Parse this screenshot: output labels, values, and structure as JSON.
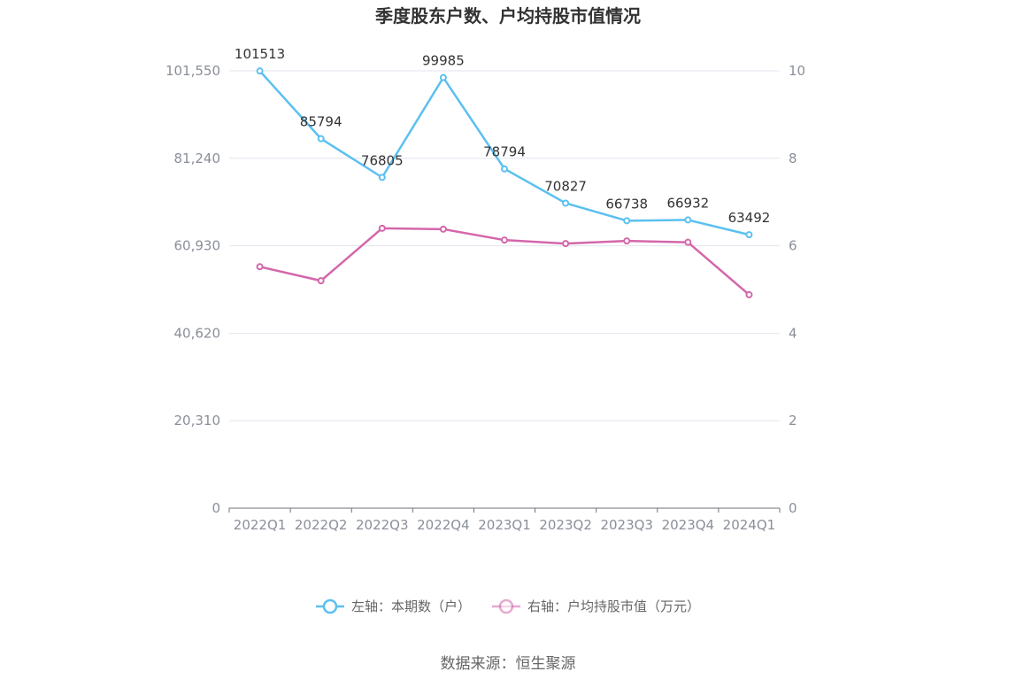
{
  "chart_data": {
    "type": "line",
    "title": "季度股东户数、户均持股市值情况",
    "categories": [
      "2022Q1",
      "2022Q2",
      "2022Q3",
      "2022Q4",
      "2023Q1",
      "2023Q2",
      "2023Q3",
      "2023Q4",
      "2024Q1"
    ],
    "left_axis": {
      "ylim": [
        0,
        101550
      ],
      "ticks": [
        "0",
        "20,310",
        "40,620",
        "60,930",
        "81,240",
        "101,550"
      ],
      "tick_values": [
        0,
        20310,
        40620,
        60930,
        81240,
        101550
      ]
    },
    "right_axis": {
      "ylim": [
        0,
        10
      ],
      "ticks": [
        "0",
        "2",
        "4",
        "6",
        "8",
        "10"
      ],
      "tick_values": [
        0,
        2,
        4,
        6,
        8,
        10
      ]
    },
    "series": [
      {
        "name": "左轴：本期数（户）",
        "axis": "left",
        "color": "#5bc0f0",
        "values": [
          101513,
          85794,
          76805,
          99985,
          78794,
          70827,
          66738,
          66932,
          63492
        ],
        "labels": [
          "101513",
          "85794",
          "76805",
          "99985",
          "78794",
          "70827",
          "66738",
          "66932",
          "63492"
        ]
      },
      {
        "name": "右轴：户均持股市值（万元）",
        "axis": "right",
        "color": "#d466ab",
        "values": [
          5.52,
          5.2,
          6.4,
          6.38,
          6.13,
          6.05,
          6.11,
          6.08,
          4.88
        ]
      }
    ],
    "grid": true,
    "legend_position": "bottom"
  },
  "source": "数据来源：恒生聚源"
}
